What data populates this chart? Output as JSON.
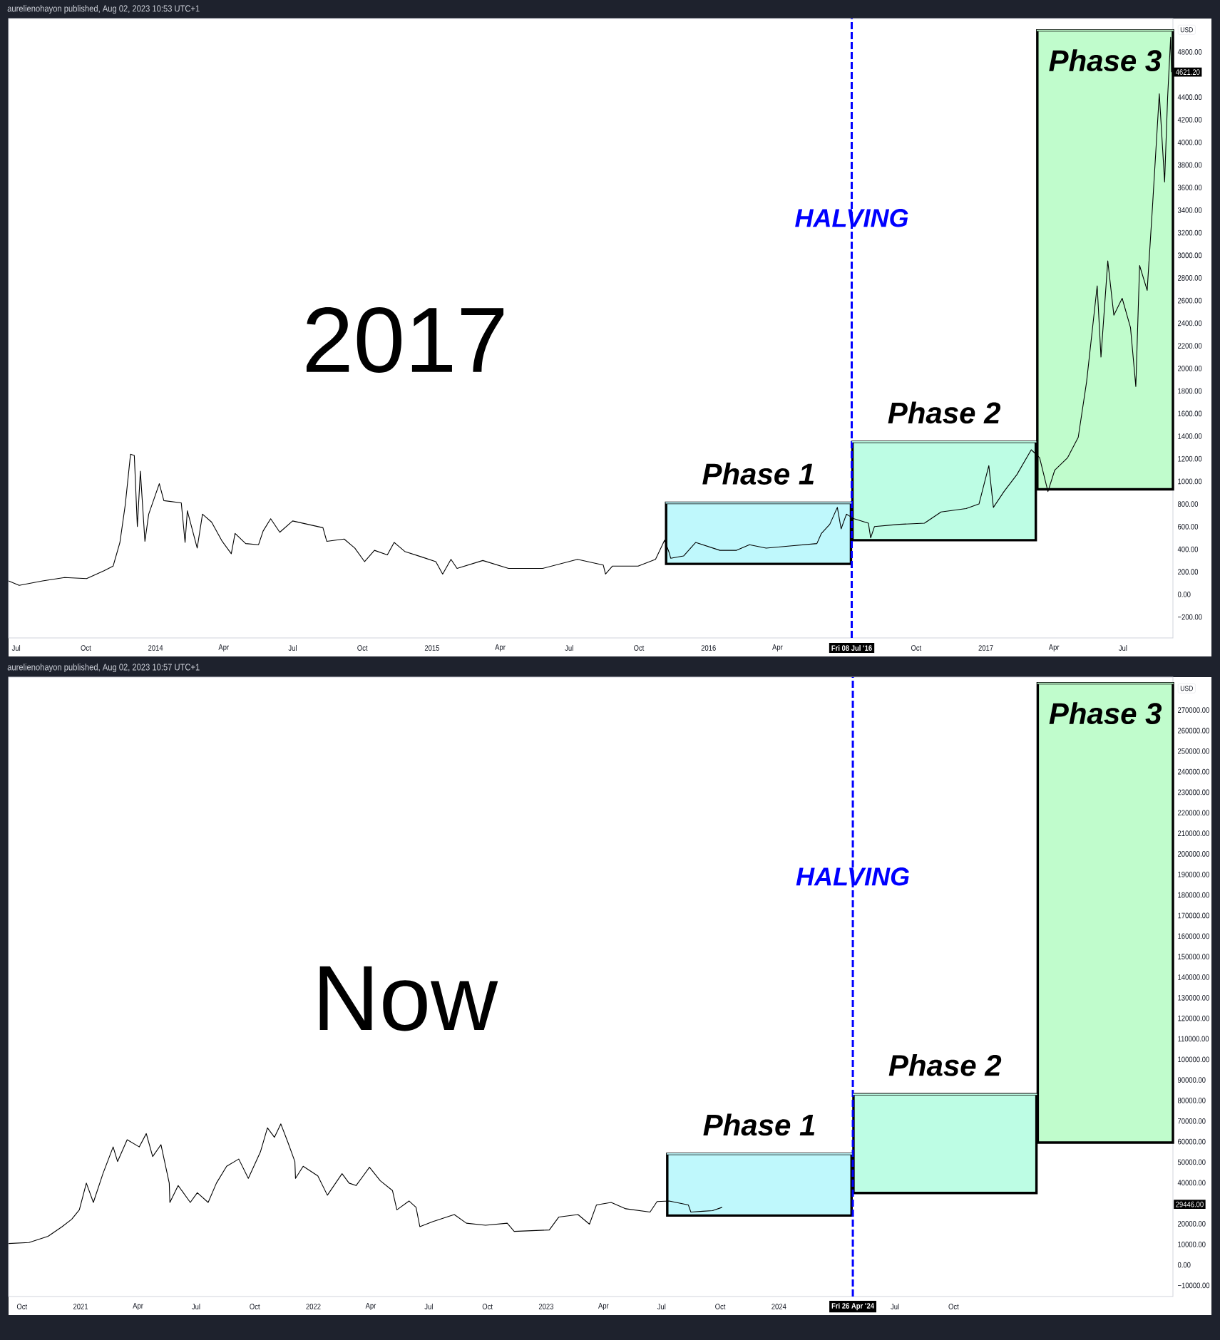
{
  "chart_data": [
    {
      "type": "line",
      "title": "2017",
      "ylabel": "USD",
      "xlim": [
        "2013-06-21",
        "2017-09-05"
      ],
      "ylim": [
        -385,
        5095
      ],
      "xticks": [
        {
          "value": "2013-07-01",
          "label": "Jul"
        },
        {
          "value": "2013-10-01",
          "label": "Oct"
        },
        {
          "value": "2014-01-01",
          "label": "2014"
        },
        {
          "value": "2014-04-01",
          "label": "Apr"
        },
        {
          "value": "2014-07-01",
          "label": "Jul"
        },
        {
          "value": "2014-10-01",
          "label": "Oct"
        },
        {
          "value": "2015-01-01",
          "label": "2015"
        },
        {
          "value": "2015-04-01",
          "label": "Apr"
        },
        {
          "value": "2015-07-01",
          "label": "Jul"
        },
        {
          "value": "2015-10-01",
          "label": "Oct"
        },
        {
          "value": "2016-01-01",
          "label": "2016"
        },
        {
          "value": "2016-04-01",
          "label": "Apr"
        },
        {
          "value": "2016-07-08",
          "label": "Fri 08 Jul '16"
        },
        {
          "value": "2016-10-01",
          "label": "Oct"
        },
        {
          "value": "2017-01-01",
          "label": "2017"
        },
        {
          "value": "2017-04-01",
          "label": "Apr"
        },
        {
          "value": "2017-07-01",
          "label": "Jul"
        }
      ],
      "yticks": [
        {
          "value": -200,
          "label": "−200.00"
        },
        {
          "value": 0,
          "label": "0.00"
        },
        {
          "value": 200,
          "label": "200.00"
        },
        {
          "value": 400,
          "label": "400.00"
        },
        {
          "value": 600,
          "label": "600.00"
        },
        {
          "value": 800,
          "label": "800.00"
        },
        {
          "value": 1000,
          "label": "1000.00"
        },
        {
          "value": 1200,
          "label": "1200.00"
        },
        {
          "value": 1400,
          "label": "1400.00"
        },
        {
          "value": 1600,
          "label": "1600.00"
        },
        {
          "value": 1800,
          "label": "1800.00"
        },
        {
          "value": 2000,
          "label": "2000.00"
        },
        {
          "value": 2200,
          "label": "2200.00"
        },
        {
          "value": 2400,
          "label": "2400.00"
        },
        {
          "value": 2600,
          "label": "2600.00"
        },
        {
          "value": 2800,
          "label": "2800.00"
        },
        {
          "value": 3000,
          "label": "3000.00"
        },
        {
          "value": 3200,
          "label": "3200.00"
        },
        {
          "value": 3400,
          "label": "3400.00"
        },
        {
          "value": 3600,
          "label": "3600.00"
        },
        {
          "value": 3800,
          "label": "3800.00"
        },
        {
          "value": 4000,
          "label": "4000.00"
        },
        {
          "value": 4200,
          "label": "4200.00"
        },
        {
          "value": 4400,
          "label": "4400.00"
        },
        {
          "value": 4621.2,
          "label": "4621.20"
        },
        {
          "value": 4800,
          "label": "4800.00"
        }
      ],
      "series": [
        {
          "name": "Phase 1",
          "color": "#bff8fc",
          "x": [
            "2015-11-06",
            "2016-07-07"
          ],
          "lower": [
            270,
            270
          ],
          "upper": [
            810,
            810
          ],
          "values": [
            810,
            810
          ]
        },
        {
          "name": "Phase 2",
          "color": "#bdfde4",
          "x": [
            "2016-07-09",
            "2017-03-08"
          ],
          "lower": [
            480,
            480
          ],
          "upper": [
            1350,
            1350
          ],
          "values": [
            1350,
            1350
          ]
        },
        {
          "name": "Phase 3",
          "color": "#c0fccc",
          "x": [
            "2017-03-10",
            "2017-09-05"
          ],
          "lower": [
            930,
            930
          ],
          "upper": [
            4990,
            4990
          ],
          "values": [
            4990,
            4990
          ]
        },
        {
          "color": "#000000",
          "x": [
            "2013-06-21",
            "2013-07-05",
            "2013-08-05",
            "2013-09-03",
            "2013-10-02",
            "2013-10-25",
            "2013-11-06",
            "2013-11-15",
            "2013-11-22",
            "2013-11-29",
            "2013-12-04",
            "2013-12-08",
            "2013-12-12",
            "2013-12-18",
            "2013-12-23",
            "2014-01-06",
            "2014-01-12",
            "2014-02-04",
            "2014-02-09",
            "2014-02-12",
            "2014-02-25",
            "2014-03-04",
            "2014-03-16",
            "2014-03-30",
            "2014-04-11",
            "2014-04-16",
            "2014-04-30",
            "2014-05-17",
            "2014-05-23",
            "2014-06-02",
            "2014-06-14",
            "2014-07-01",
            "2014-08-10",
            "2014-08-15",
            "2014-09-07",
            "2014-09-21",
            "2014-10-04",
            "2014-10-17",
            "2014-11-03",
            "2014-11-12",
            "2014-11-26",
            "2014-12-19",
            "2015-01-06",
            "2015-01-15",
            "2015-01-26",
            "2015-02-03",
            "2015-03-09",
            "2015-04-12",
            "2015-05-27",
            "2015-07-12",
            "2015-08-15",
            "2015-08-18",
            "2015-08-27",
            "2015-09-30",
            "2015-10-23",
            "2015-11-04",
            "2015-11-10",
            "2015-11-12",
            "2015-11-29",
            "2015-12-15",
            "2016-01-16",
            "2016-02-07",
            "2016-02-24",
            "2016-03-17",
            "2016-04-20",
            "2016-05-23",
            "2016-05-29",
            "2016-06-09",
            "2016-06-19",
            "2016-06-24",
            "2016-07-01",
            "2016-07-11",
            "2016-07-30",
            "2016-08-02",
            "2016-08-07",
            "2016-09-09",
            "2016-10-12",
            "2016-11-03",
            "2016-12-06",
            "2016-12-23",
            "2017-01-05",
            "2017-01-11",
            "2017-01-25",
            "2017-02-11",
            "2017-03-02",
            "2017-03-13",
            "2017-03-24",
            "2017-04-02",
            "2017-04-19",
            "2017-05-03",
            "2017-05-14",
            "2017-05-28",
            "2017-06-02",
            "2017-06-11",
            "2017-06-19",
            "2017-06-30",
            "2017-07-11",
            "2017-07-18",
            "2017-07-23",
            "2017-08-02",
            "2017-08-09",
            "2017-08-18",
            "2017-08-25",
            "2017-08-29",
            "2017-09-02",
            "2017-09-03"
          ],
          "values": [
            120,
            80,
            120,
            150,
            140,
            210,
            250,
            460,
            790,
            1240,
            1230,
            600,
            1090,
            470,
            710,
            980,
            830,
            810,
            460,
            740,
            410,
            710,
            640,
            470,
            360,
            540,
            450,
            440,
            560,
            670,
            550,
            650,
            590,
            470,
            490,
            410,
            290,
            390,
            350,
            460,
            380,
            330,
            290,
            180,
            310,
            230,
            300,
            230,
            230,
            310,
            260,
            180,
            250,
            250,
            310,
            480,
            370,
            320,
            340,
            460,
            390,
            390,
            440,
            410,
            430,
            450,
            540,
            620,
            770,
            580,
            710,
            670,
            630,
            500,
            600,
            620,
            630,
            730,
            760,
            800,
            1140,
            770,
            910,
            1060,
            1280,
            1210,
            910,
            1100,
            1210,
            1390,
            1880,
            2730,
            2100,
            2950,
            2470,
            2620,
            2360,
            1840,
            2910,
            2690,
            3430,
            4430,
            3650,
            4400,
            4930,
            4620
          ]
        }
      ],
      "ref_lines": [
        {
          "axis": "x",
          "value": "2016-07-08",
          "label": "HALVING",
          "color": "#0000ff",
          "line_style": "dashed"
        }
      ],
      "annotations": [
        "aurelienohayon published, Aug 02, 2023 10:53 UTC+1"
      ]
    },
    {
      "type": "line",
      "title": "Now",
      "ylabel": "USD",
      "xlim": [
        "2020-09-10",
        "2025-09-10"
      ],
      "ylim": [
        -15400,
        286000
      ],
      "xticks": [
        {
          "value": "2020-10-01",
          "label": "Oct"
        },
        {
          "value": "2021-01-01",
          "label": "2021"
        },
        {
          "value": "2021-04-01",
          "label": "Apr"
        },
        {
          "value": "2021-07-01",
          "label": "Jul"
        },
        {
          "value": "2021-10-01",
          "label": "Oct"
        },
        {
          "value": "2022-01-01",
          "label": "2022"
        },
        {
          "value": "2022-04-01",
          "label": "Apr"
        },
        {
          "value": "2022-07-01",
          "label": "Jul"
        },
        {
          "value": "2022-10-01",
          "label": "Oct"
        },
        {
          "value": "2023-01-01",
          "label": "2023"
        },
        {
          "value": "2023-04-01",
          "label": "Apr"
        },
        {
          "value": "2023-07-01",
          "label": "Jul"
        },
        {
          "value": "2023-10-01",
          "label": "Oct"
        },
        {
          "value": "2024-01-01",
          "label": "2024"
        },
        {
          "value": "2024-04-26",
          "label": "Fri 26 Apr '24"
        },
        {
          "value": "2024-07-01",
          "label": "Jul"
        },
        {
          "value": "2024-10-01",
          "label": "Oct"
        }
      ],
      "yticks": [
        {
          "value": -10000,
          "label": "−10000.00"
        },
        {
          "value": 0,
          "label": "0.00"
        },
        {
          "value": 10000,
          "label": "10000.00"
        },
        {
          "value": 20000,
          "label": "20000.00"
        },
        {
          "value": 29446,
          "label": "29446.00"
        },
        {
          "value": 40000,
          "label": "40000.00"
        },
        {
          "value": 50000,
          "label": "50000.00"
        },
        {
          "value": 60000,
          "label": "60000.00"
        },
        {
          "value": 70000,
          "label": "70000.00"
        },
        {
          "value": 80000,
          "label": "80000.00"
        },
        {
          "value": 90000,
          "label": "90000.00"
        },
        {
          "value": 100000,
          "label": "100000.00"
        },
        {
          "value": 110000,
          "label": "110000.00"
        },
        {
          "value": 120000,
          "label": "120000.00"
        },
        {
          "value": 130000,
          "label": "130000.00"
        },
        {
          "value": 140000,
          "label": "140000.00"
        },
        {
          "value": 150000,
          "label": "150000.00"
        },
        {
          "value": 160000,
          "label": "160000.00"
        },
        {
          "value": 170000,
          "label": "170000.00"
        },
        {
          "value": 180000,
          "label": "180000.00"
        },
        {
          "value": 190000,
          "label": "190000.00"
        },
        {
          "value": 200000,
          "label": "200000.00"
        },
        {
          "value": 210000,
          "label": "210000.00"
        },
        {
          "value": 220000,
          "label": "220000.00"
        },
        {
          "value": 230000,
          "label": "230000.00"
        },
        {
          "value": 240000,
          "label": "240000.00"
        },
        {
          "value": 250000,
          "label": "250000.00"
        },
        {
          "value": 260000,
          "label": "260000.00"
        },
        {
          "value": 270000,
          "label": "270000.00"
        }
      ],
      "series": [
        {
          "name": "Phase 1",
          "color": "#bff8fc",
          "x": [
            "2023-07-10",
            "2024-04-24"
          ],
          "lower": [
            24000,
            24000
          ],
          "upper": [
            54000,
            54000
          ],
          "values": [
            54000,
            54000
          ]
        },
        {
          "name": "Phase 2",
          "color": "#bdfde4",
          "x": [
            "2024-04-27",
            "2025-02-08"
          ],
          "lower": [
            35000,
            35000
          ],
          "upper": [
            83000,
            83000
          ],
          "values": [
            83000,
            83000
          ]
        },
        {
          "name": "Phase 3",
          "color": "#c0fccc",
          "x": [
            "2025-02-10",
            "2025-09-10"
          ],
          "lower": [
            59500,
            59500
          ],
          "upper": [
            283000,
            283000
          ],
          "values": [
            283000,
            283000
          ]
        },
        {
          "color": "#000000",
          "x": [
            "2020-09-10",
            "2020-10-12",
            "2020-11-11",
            "2020-12-03",
            "2020-12-18",
            "2020-12-30",
            "2021-01-10",
            "2021-01-21",
            "2021-02-05",
            "2021-02-21",
            "2021-02-28",
            "2021-03-15",
            "2021-04-03",
            "2021-04-14",
            "2021-04-24",
            "2021-05-07",
            "2021-05-20",
            "2021-05-21",
            "2021-06-03",
            "2021-06-22",
            "2021-07-03",
            "2021-07-20",
            "2021-08-02",
            "2021-08-18",
            "2021-09-06",
            "2021-09-21",
            "2021-10-10",
            "2021-10-21",
            "2021-11-01",
            "2021-11-11",
            "2021-11-22",
            "2021-12-03",
            "2021-12-04",
            "2021-12-16",
            "2022-01-08",
            "2022-01-23",
            "2022-02-15",
            "2022-02-26",
            "2022-03-09",
            "2022-03-30",
            "2022-04-16",
            "2022-05-05",
            "2022-05-12",
            "2022-05-31",
            "2022-06-11",
            "2022-06-17",
            "2022-07-07",
            "2022-08-10",
            "2022-08-29",
            "2022-09-28",
            "2022-11-01",
            "2022-11-12",
            "2023-01-06",
            "2023-01-21",
            "2023-02-20",
            "2023-03-10",
            "2023-03-21",
            "2023-04-13",
            "2023-05-06",
            "2023-06-13",
            "2023-06-24",
            "2023-07-13",
            "2023-08-12",
            "2023-08-16",
            "2023-09-04",
            "2023-09-19",
            "2023-10-04"
          ],
          "values": [
            10400,
            10900,
            13900,
            18600,
            22200,
            26800,
            39800,
            30400,
            44400,
            57400,
            50300,
            60900,
            57400,
            63900,
            52700,
            58500,
            39800,
            30400,
            38600,
            30400,
            35100,
            30400,
            39800,
            48000,
            51500,
            42100,
            55000,
            66700,
            62100,
            68600,
            59700,
            50300,
            42100,
            48000,
            43300,
            33900,
            44400,
            39800,
            38600,
            47500,
            40900,
            36200,
            26800,
            31100,
            28000,
            18600,
            21000,
            24500,
            20300,
            19300,
            20300,
            16300,
            17000,
            23300,
            24500,
            19800,
            29200,
            30400,
            27300,
            25700,
            30800,
            31100,
            29200,
            25700,
            26100,
            26400,
            28000
          ]
        }
      ],
      "ref_lines": [
        {
          "axis": "x",
          "value": "2024-04-26",
          "label": "HALVING",
          "color": "#0000ff",
          "line_style": "dashed"
        }
      ],
      "annotations": [
        "aurelienohayon published, Aug 02, 2023 10:57 UTC+1"
      ]
    }
  ]
}
